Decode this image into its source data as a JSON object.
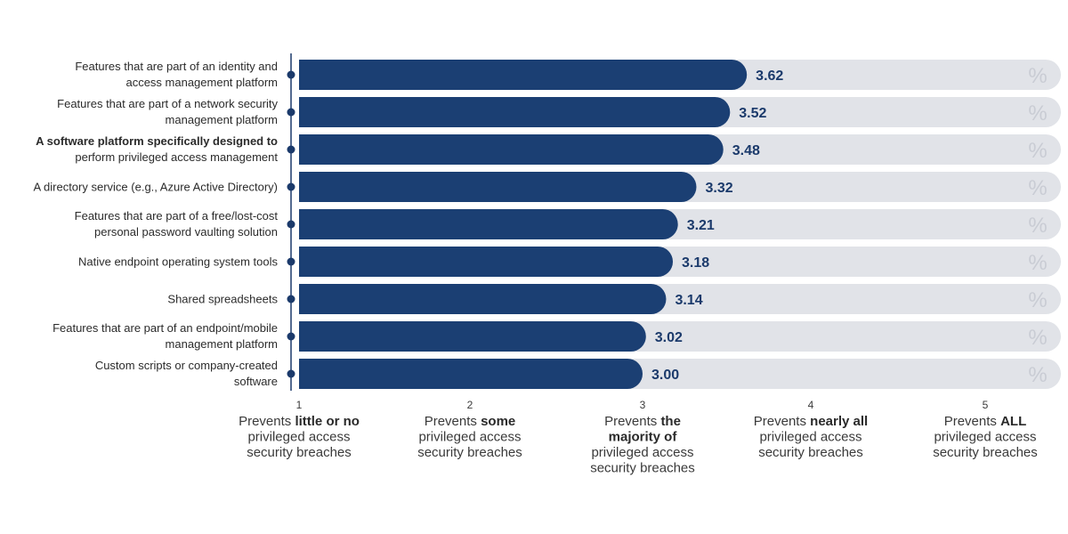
{
  "chart_data": {
    "type": "bar",
    "orientation": "horizontal",
    "categories": [
      [
        "Features that are part of an identity and",
        "access management platform"
      ],
      [
        "Features that are part of a network security",
        "management platform"
      ],
      [
        "A software platform specifically designed to",
        "perform privileged access management"
      ],
      [
        "A directory service (e.g., Azure Active Directory)"
      ],
      [
        "Features that are part of a free/lost-cost",
        "personal password vaulting solution"
      ],
      [
        "Native endpoint operating system tools"
      ],
      [
        "Shared spreadsheets"
      ],
      [
        "Features that are part of an endpoint/mobile",
        "management platform"
      ],
      [
        "Custom scripts or company-created",
        "software"
      ]
    ],
    "values": [
      3.62,
      3.52,
      3.48,
      3.32,
      3.21,
      3.18,
      3.14,
      3.02,
      3.0
    ],
    "value_labels": [
      "3.62",
      "3.52",
      "3.48",
      "3.32",
      "3.21",
      "3.18",
      "3.14",
      "3.02",
      "3.00"
    ],
    "bold_category_lines": [
      [
        2,
        0
      ]
    ],
    "percent_symbol": "%",
    "xlim": [
      1,
      5
    ],
    "xticks": [
      {
        "value": 1,
        "label": "1",
        "lines": [
          [
            {
              "t": "Prevents "
            },
            {
              "t": "little or no",
              "b": true
            }
          ],
          [
            {
              "t": "privileged access"
            }
          ],
          [
            {
              "t": "security breaches"
            }
          ]
        ]
      },
      {
        "value": 2,
        "label": "2",
        "lines": [
          [
            {
              "t": "Prevents "
            },
            {
              "t": "some",
              "b": true
            }
          ],
          [
            {
              "t": "privileged access"
            }
          ],
          [
            {
              "t": "security breaches"
            }
          ]
        ]
      },
      {
        "value": 3,
        "label": "3",
        "lines": [
          [
            {
              "t": "Prevents "
            },
            {
              "t": "the",
              "b": true
            }
          ],
          [
            {
              "t": "majority of",
              "b": true
            }
          ],
          [
            {
              "t": "privileged access"
            }
          ],
          [
            {
              "t": "security breaches"
            }
          ]
        ]
      },
      {
        "value": 4,
        "label": "4",
        "lines": [
          [
            {
              "t": "Prevents "
            },
            {
              "t": "nearly all",
              "b": true
            }
          ],
          [
            {
              "t": "privileged access"
            }
          ],
          [
            {
              "t": "security breaches"
            }
          ]
        ]
      },
      {
        "value": 5,
        "label": "5",
        "lines": [
          [
            {
              "t": "Prevents "
            },
            {
              "t": "ALL",
              "b": true
            }
          ],
          [
            {
              "t": "privileged access"
            }
          ],
          [
            {
              "t": "security breaches"
            }
          ]
        ]
      }
    ],
    "colors": {
      "bar": "#1b3f73",
      "track": "#e1e3e8",
      "axis": "#1b3a6b",
      "value_text": "#1b3a6b",
      "percent_text": "#c9ccd4"
    },
    "title": "",
    "xlabel": "",
    "ylabel": ""
  }
}
